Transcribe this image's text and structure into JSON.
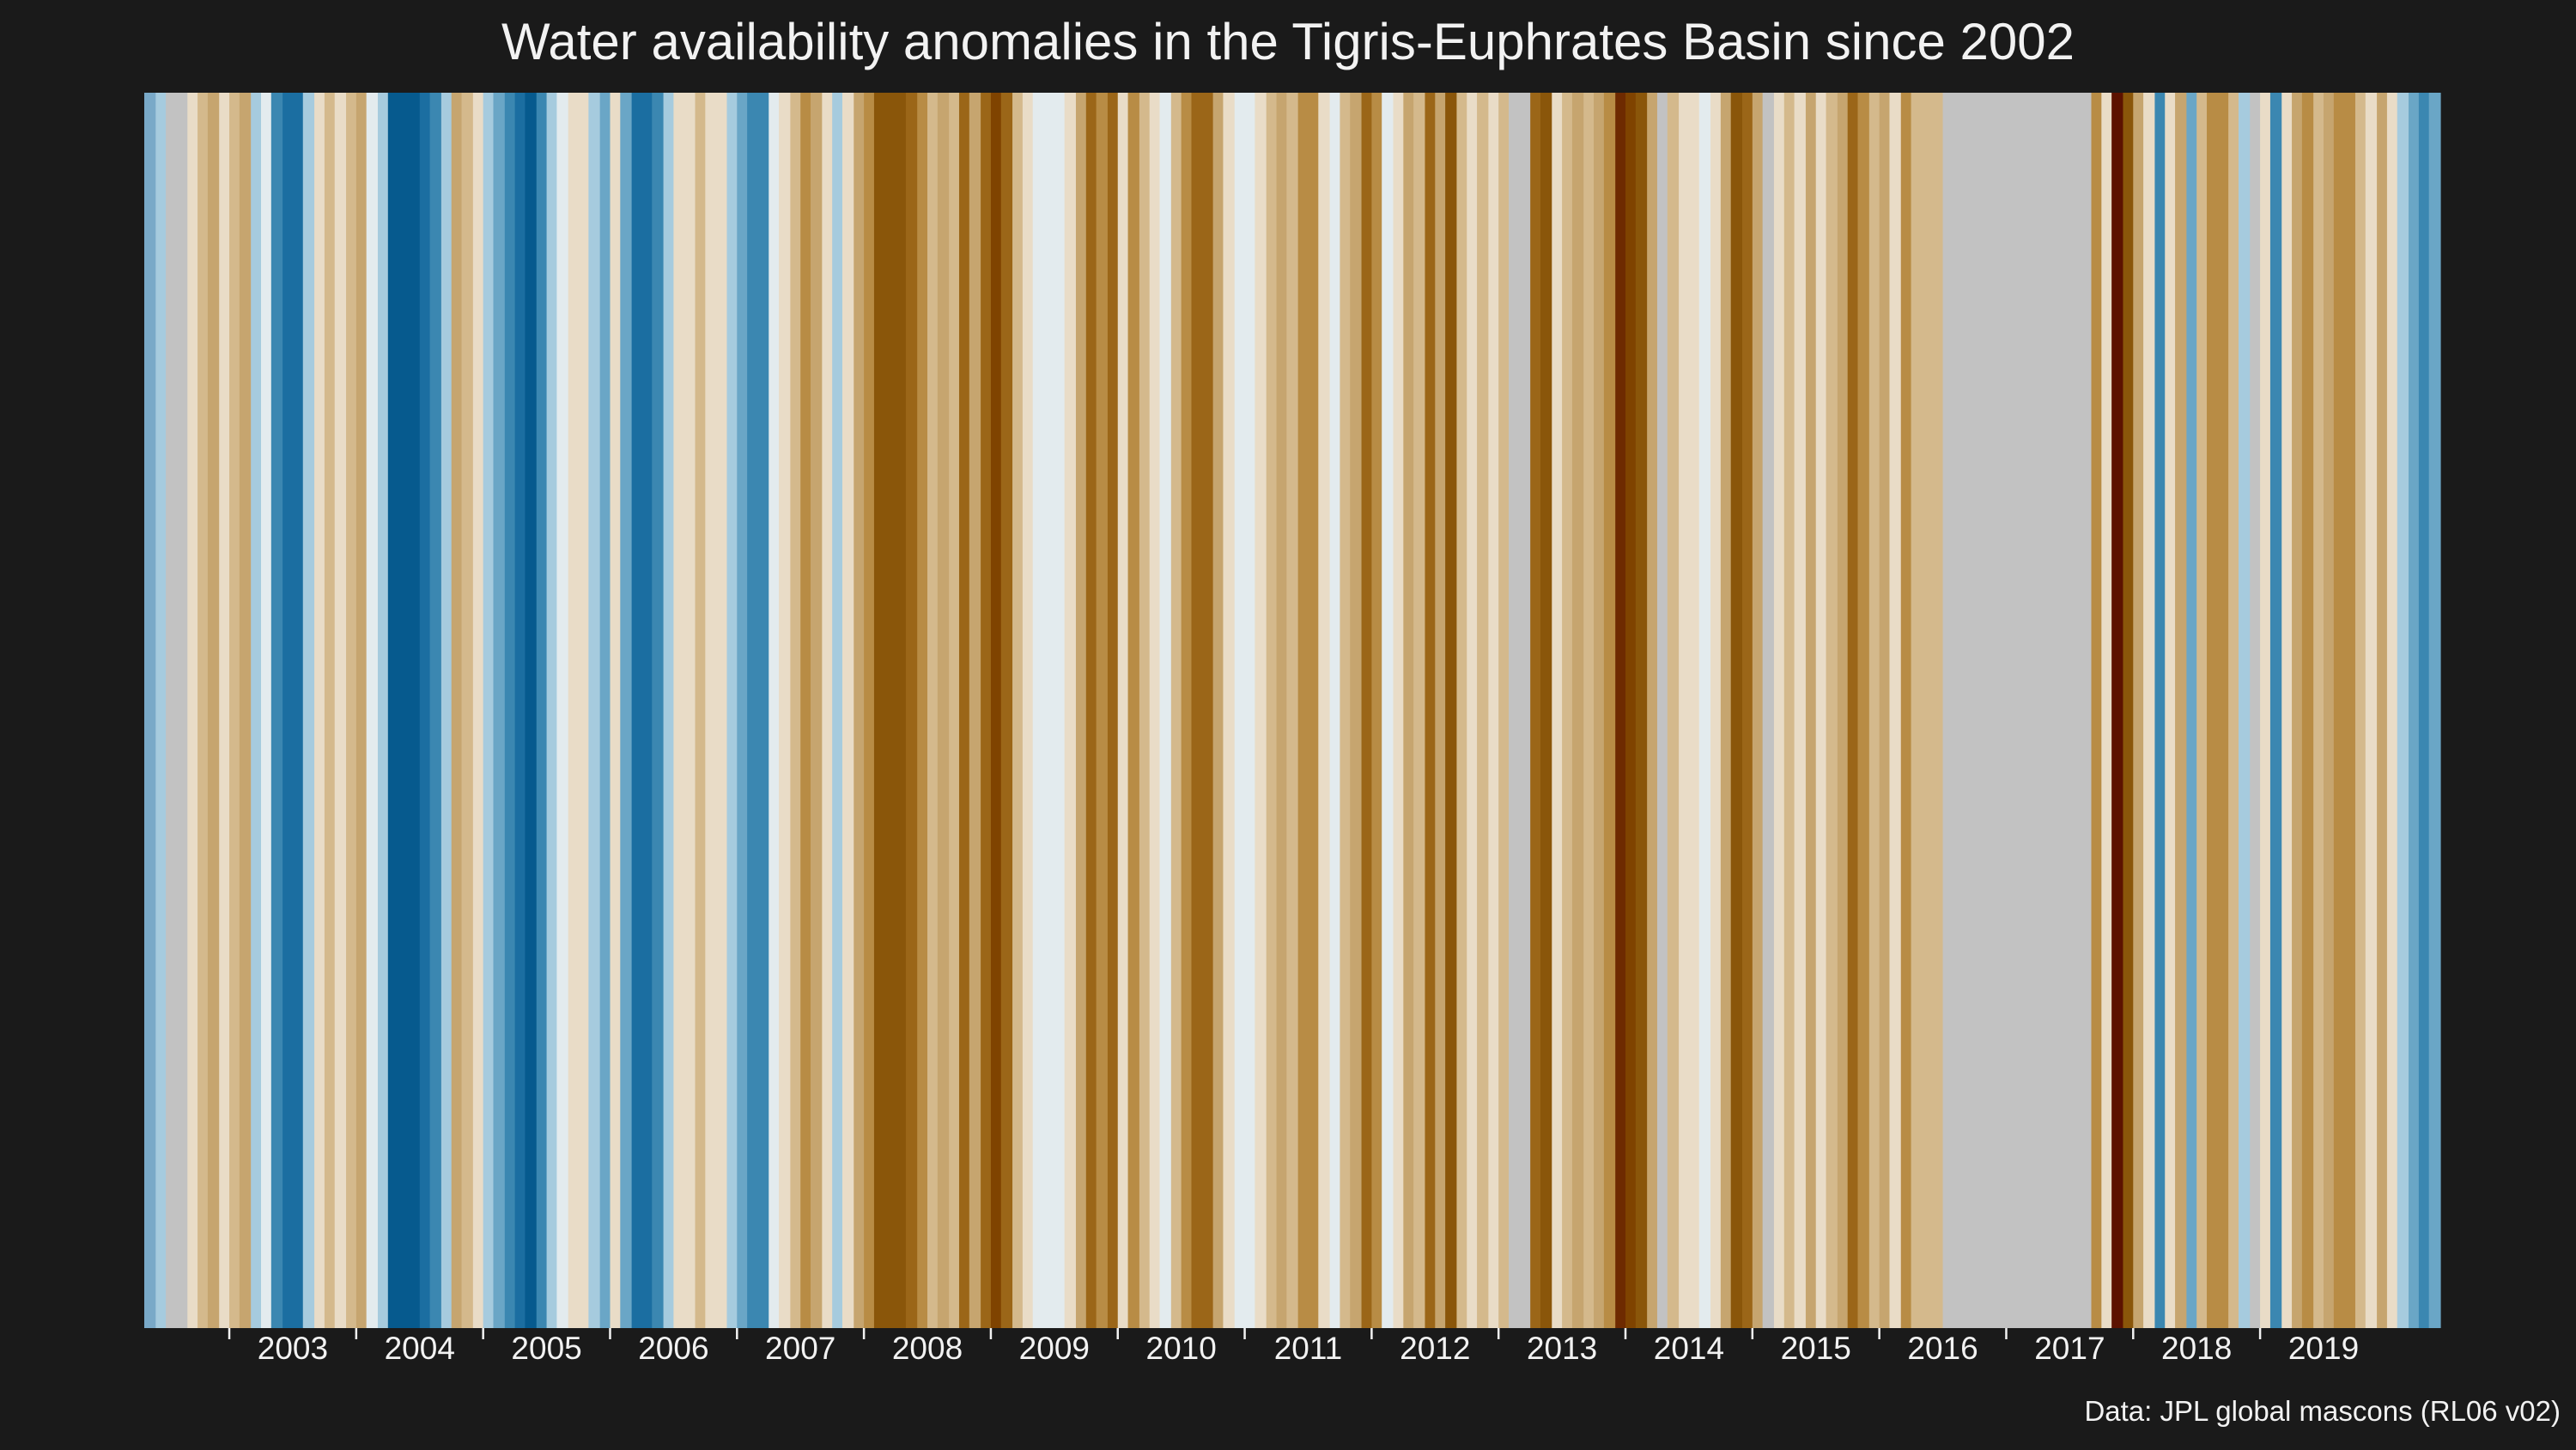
{
  "chart_data": {
    "type": "heatmap",
    "title": "Water availability anomalies in the Tigris-Euphrates Basin since 2002",
    "caption": "Data: JPL global mascons (RL06 v02)",
    "xlabel": "",
    "ylabel": "",
    "x_start": 2002.33,
    "x_end": 2020.42,
    "xlim": [
      2002.33,
      2020.42
    ],
    "ticks": [
      "2003",
      "2004",
      "2005",
      "2006",
      "2007",
      "2008",
      "2009",
      "2010",
      "2011",
      "2012",
      "2013",
      "2014",
      "2015",
      "2016",
      "2017",
      "2018",
      "2019"
    ],
    "palette": {
      "missing": "#c2c2c2",
      "scale": [
        "#065a8e",
        "#1b6ea1",
        "#3b87b1",
        "#6aa6c6",
        "#a6cbde",
        "#e3ebee",
        "#e9dcc7",
        "#d4b98c",
        "#c6a56f",
        "#b88c45",
        "#9b6618",
        "#8a560a",
        "#7f4300",
        "#6e2a00",
        "#5c1200"
      ]
    },
    "stripes": [
      {
        "from": 2002.33,
        "to": 2002.42,
        "color": "#79a9c8"
      },
      {
        "from": 2002.42,
        "to": 2002.5,
        "color": "#a6cbde"
      },
      {
        "from": 2002.5,
        "to": 2002.67,
        "color": "#c2c2c2"
      },
      {
        "from": 2002.67,
        "to": 2002.75,
        "color": "#e9dcc7"
      },
      {
        "from": 2002.75,
        "to": 2002.83,
        "color": "#d4b98c"
      },
      {
        "from": 2002.83,
        "to": 2002.92,
        "color": "#c6a56f"
      },
      {
        "from": 2002.92,
        "to": 2003.0,
        "color": "#e9dcc7"
      },
      {
        "from": 2003.0,
        "to": 2003.08,
        "color": "#d4b98c"
      },
      {
        "from": 2003.08,
        "to": 2003.17,
        "color": "#c6a56f"
      },
      {
        "from": 2003.17,
        "to": 2003.25,
        "color": "#a6cbde"
      },
      {
        "from": 2003.25,
        "to": 2003.33,
        "color": "#e3ebee"
      },
      {
        "from": 2003.33,
        "to": 2003.42,
        "color": "#3b87b1"
      },
      {
        "from": 2003.42,
        "to": 2003.58,
        "color": "#1b6ea1"
      },
      {
        "from": 2003.58,
        "to": 2003.67,
        "color": "#a6cbde"
      },
      {
        "from": 2003.67,
        "to": 2003.75,
        "color": "#e9dcc7"
      },
      {
        "from": 2003.75,
        "to": 2003.83,
        "color": "#d4b98c"
      },
      {
        "from": 2003.83,
        "to": 2003.92,
        "color": "#e9dcc7"
      },
      {
        "from": 2003.92,
        "to": 2004.0,
        "color": "#d4b98c"
      },
      {
        "from": 2004.0,
        "to": 2004.08,
        "color": "#c6a56f"
      },
      {
        "from": 2004.08,
        "to": 2004.17,
        "color": "#e3ebee"
      },
      {
        "from": 2004.17,
        "to": 2004.25,
        "color": "#a6cbde"
      },
      {
        "from": 2004.25,
        "to": 2004.5,
        "color": "#065a8e"
      },
      {
        "from": 2004.5,
        "to": 2004.58,
        "color": "#1b6ea1"
      },
      {
        "from": 2004.58,
        "to": 2004.67,
        "color": "#3b87b1"
      },
      {
        "from": 2004.67,
        "to": 2004.75,
        "color": "#a6cbde"
      },
      {
        "from": 2004.75,
        "to": 2004.83,
        "color": "#c6a56f"
      },
      {
        "from": 2004.83,
        "to": 2004.92,
        "color": "#d4b98c"
      },
      {
        "from": 2004.92,
        "to": 2005.0,
        "color": "#e9dcc7"
      },
      {
        "from": 2005.0,
        "to": 2005.08,
        "color": "#a6cbde"
      },
      {
        "from": 2005.08,
        "to": 2005.17,
        "color": "#6aa6c6"
      },
      {
        "from": 2005.17,
        "to": 2005.25,
        "color": "#3b87b1"
      },
      {
        "from": 2005.25,
        "to": 2005.33,
        "color": "#1b6ea1"
      },
      {
        "from": 2005.33,
        "to": 2005.42,
        "color": "#065a8e"
      },
      {
        "from": 2005.42,
        "to": 2005.5,
        "color": "#3b87b1"
      },
      {
        "from": 2005.5,
        "to": 2005.58,
        "color": "#a6cbde"
      },
      {
        "from": 2005.58,
        "to": 2005.67,
        "color": "#e3ebee"
      },
      {
        "from": 2005.67,
        "to": 2005.83,
        "color": "#e9dcc7"
      },
      {
        "from": 2005.83,
        "to": 2005.92,
        "color": "#a6cbde"
      },
      {
        "from": 2005.92,
        "to": 2006.0,
        "color": "#6aa6c6"
      },
      {
        "from": 2006.0,
        "to": 2006.08,
        "color": "#e9dcc7"
      },
      {
        "from": 2006.08,
        "to": 2006.17,
        "color": "#6aa6c6"
      },
      {
        "from": 2006.17,
        "to": 2006.33,
        "color": "#1b6ea1"
      },
      {
        "from": 2006.33,
        "to": 2006.42,
        "color": "#3b87b1"
      },
      {
        "from": 2006.42,
        "to": 2006.5,
        "color": "#a6cbde"
      },
      {
        "from": 2006.5,
        "to": 2006.67,
        "color": "#e9dcc7"
      },
      {
        "from": 2006.67,
        "to": 2006.75,
        "color": "#d4b98c"
      },
      {
        "from": 2006.75,
        "to": 2006.92,
        "color": "#e9dcc7"
      },
      {
        "from": 2006.92,
        "to": 2007.0,
        "color": "#a6cbde"
      },
      {
        "from": 2007.0,
        "to": 2007.08,
        "color": "#6aa6c6"
      },
      {
        "from": 2007.08,
        "to": 2007.25,
        "color": "#3b87b1"
      },
      {
        "from": 2007.25,
        "to": 2007.33,
        "color": "#e3ebee"
      },
      {
        "from": 2007.33,
        "to": 2007.42,
        "color": "#e9dcc7"
      },
      {
        "from": 2007.42,
        "to": 2007.5,
        "color": "#d4b98c"
      },
      {
        "from": 2007.5,
        "to": 2007.58,
        "color": "#b88c45"
      },
      {
        "from": 2007.58,
        "to": 2007.67,
        "color": "#c6a56f"
      },
      {
        "from": 2007.67,
        "to": 2007.75,
        "color": "#e9dcc7"
      },
      {
        "from": 2007.75,
        "to": 2007.83,
        "color": "#a6cbde"
      },
      {
        "from": 2007.83,
        "to": 2007.92,
        "color": "#e9dcc7"
      },
      {
        "from": 2007.92,
        "to": 2008.0,
        "color": "#c6a56f"
      },
      {
        "from": 2008.0,
        "to": 2008.08,
        "color": "#b88c45"
      },
      {
        "from": 2008.08,
        "to": 2008.33,
        "color": "#8a560a"
      },
      {
        "from": 2008.33,
        "to": 2008.42,
        "color": "#9b6618"
      },
      {
        "from": 2008.42,
        "to": 2008.5,
        "color": "#b88c45"
      },
      {
        "from": 2008.5,
        "to": 2008.58,
        "color": "#d4b98c"
      },
      {
        "from": 2008.58,
        "to": 2008.67,
        "color": "#c6a56f"
      },
      {
        "from": 2008.67,
        "to": 2008.75,
        "color": "#d4b98c"
      },
      {
        "from": 2008.75,
        "to": 2008.83,
        "color": "#9b6618"
      },
      {
        "from": 2008.83,
        "to": 2008.92,
        "color": "#c6a56f"
      },
      {
        "from": 2008.92,
        "to": 2009.0,
        "color": "#9b6618"
      },
      {
        "from": 2009.0,
        "to": 2009.08,
        "color": "#7f4300"
      },
      {
        "from": 2009.08,
        "to": 2009.17,
        "color": "#9b6618"
      },
      {
        "from": 2009.17,
        "to": 2009.25,
        "color": "#d4b98c"
      },
      {
        "from": 2009.25,
        "to": 2009.33,
        "color": "#e9dcc7"
      },
      {
        "from": 2009.33,
        "to": 2009.58,
        "color": "#e3ebee"
      },
      {
        "from": 2009.58,
        "to": 2009.67,
        "color": "#e9dcc7"
      },
      {
        "from": 2009.67,
        "to": 2009.75,
        "color": "#c6a56f"
      },
      {
        "from": 2009.75,
        "to": 2009.83,
        "color": "#9b6618"
      },
      {
        "from": 2009.83,
        "to": 2009.92,
        "color": "#b88c45"
      },
      {
        "from": 2009.92,
        "to": 2010.0,
        "color": "#9b6618"
      },
      {
        "from": 2010.0,
        "to": 2010.08,
        "color": "#e9dcc7"
      },
      {
        "from": 2010.08,
        "to": 2010.17,
        "color": "#b88c45"
      },
      {
        "from": 2010.17,
        "to": 2010.25,
        "color": "#d4b98c"
      },
      {
        "from": 2010.25,
        "to": 2010.33,
        "color": "#e9dcc7"
      },
      {
        "from": 2010.33,
        "to": 2010.42,
        "color": "#e3ebee"
      },
      {
        "from": 2010.42,
        "to": 2010.5,
        "color": "#d4b98c"
      },
      {
        "from": 2010.5,
        "to": 2010.58,
        "color": "#b88c45"
      },
      {
        "from": 2010.58,
        "to": 2010.75,
        "color": "#9b6618"
      },
      {
        "from": 2010.75,
        "to": 2010.83,
        "color": "#c6a56f"
      },
      {
        "from": 2010.83,
        "to": 2010.92,
        "color": "#e9dcc7"
      },
      {
        "from": 2010.92,
        "to": 2011.08,
        "color": "#e3ebee"
      },
      {
        "from": 2011.08,
        "to": 2011.17,
        "color": "#e9dcc7"
      },
      {
        "from": 2011.17,
        "to": 2011.25,
        "color": "#d4b98c"
      },
      {
        "from": 2011.25,
        "to": 2011.33,
        "color": "#c6a56f"
      },
      {
        "from": 2011.33,
        "to": 2011.42,
        "color": "#d4b98c"
      },
      {
        "from": 2011.42,
        "to": 2011.58,
        "color": "#b88c45"
      },
      {
        "from": 2011.58,
        "to": 2011.67,
        "color": "#e9dcc7"
      },
      {
        "from": 2011.67,
        "to": 2011.75,
        "color": "#e3ebee"
      },
      {
        "from": 2011.75,
        "to": 2011.83,
        "color": "#d4b98c"
      },
      {
        "from": 2011.83,
        "to": 2011.92,
        "color": "#c6a56f"
      },
      {
        "from": 2011.92,
        "to": 2012.0,
        "color": "#9b6618"
      },
      {
        "from": 2012.0,
        "to": 2012.08,
        "color": "#b88c45"
      },
      {
        "from": 2012.08,
        "to": 2012.17,
        "color": "#e3ebee"
      },
      {
        "from": 2012.17,
        "to": 2012.25,
        "color": "#e9dcc7"
      },
      {
        "from": 2012.25,
        "to": 2012.33,
        "color": "#c6a56f"
      },
      {
        "from": 2012.33,
        "to": 2012.42,
        "color": "#d4b98c"
      },
      {
        "from": 2012.42,
        "to": 2012.5,
        "color": "#9b6618"
      },
      {
        "from": 2012.5,
        "to": 2012.58,
        "color": "#c6a56f"
      },
      {
        "from": 2012.58,
        "to": 2012.67,
        "color": "#8a560a"
      },
      {
        "from": 2012.67,
        "to": 2012.75,
        "color": "#d4b98c"
      },
      {
        "from": 2012.75,
        "to": 2012.83,
        "color": "#e9dcc7"
      },
      {
        "from": 2012.83,
        "to": 2012.92,
        "color": "#d4b98c"
      },
      {
        "from": 2012.92,
        "to": 2013.0,
        "color": "#e9dcc7"
      },
      {
        "from": 2013.0,
        "to": 2013.08,
        "color": "#d4b98c"
      },
      {
        "from": 2013.08,
        "to": 2013.25,
        "color": "#c2c2c2"
      },
      {
        "from": 2013.25,
        "to": 2013.33,
        "color": "#9b6618"
      },
      {
        "from": 2013.33,
        "to": 2013.42,
        "color": "#8a560a"
      },
      {
        "from": 2013.42,
        "to": 2013.5,
        "color": "#e9dcc7"
      },
      {
        "from": 2013.5,
        "to": 2013.58,
        "color": "#d4b98c"
      },
      {
        "from": 2013.58,
        "to": 2013.67,
        "color": "#c6a56f"
      },
      {
        "from": 2013.67,
        "to": 2013.75,
        "color": "#d4b98c"
      },
      {
        "from": 2013.75,
        "to": 2013.83,
        "color": "#c6a56f"
      },
      {
        "from": 2013.83,
        "to": 2013.92,
        "color": "#b88c45"
      },
      {
        "from": 2013.92,
        "to": 2014.0,
        "color": "#6e2a00"
      },
      {
        "from": 2014.0,
        "to": 2014.08,
        "color": "#7f4300"
      },
      {
        "from": 2014.08,
        "to": 2014.17,
        "color": "#8a560a"
      },
      {
        "from": 2014.17,
        "to": 2014.25,
        "color": "#c6a56f"
      },
      {
        "from": 2014.25,
        "to": 2014.33,
        "color": "#c2c2c2"
      },
      {
        "from": 2014.33,
        "to": 2014.42,
        "color": "#d4b98c"
      },
      {
        "from": 2014.42,
        "to": 2014.58,
        "color": "#e9dcc7"
      },
      {
        "from": 2014.58,
        "to": 2014.67,
        "color": "#e3ebee"
      },
      {
        "from": 2014.67,
        "to": 2014.75,
        "color": "#e9dcc7"
      },
      {
        "from": 2014.75,
        "to": 2014.83,
        "color": "#c6a56f"
      },
      {
        "from": 2014.83,
        "to": 2014.92,
        "color": "#8a560a"
      },
      {
        "from": 2014.92,
        "to": 2015.0,
        "color": "#9b6618"
      },
      {
        "from": 2015.0,
        "to": 2015.08,
        "color": "#c6a56f"
      },
      {
        "from": 2015.08,
        "to": 2015.17,
        "color": "#c2c2c2"
      },
      {
        "from": 2015.17,
        "to": 2015.25,
        "color": "#e9dcc7"
      },
      {
        "from": 2015.25,
        "to": 2015.33,
        "color": "#d4b98c"
      },
      {
        "from": 2015.33,
        "to": 2015.42,
        "color": "#e9dcc7"
      },
      {
        "from": 2015.42,
        "to": 2015.5,
        "color": "#c6a56f"
      },
      {
        "from": 2015.5,
        "to": 2015.58,
        "color": "#e9dcc7"
      },
      {
        "from": 2015.58,
        "to": 2015.67,
        "color": "#d4b98c"
      },
      {
        "from": 2015.67,
        "to": 2015.75,
        "color": "#c6a56f"
      },
      {
        "from": 2015.75,
        "to": 2015.83,
        "color": "#9b6618"
      },
      {
        "from": 2015.83,
        "to": 2015.92,
        "color": "#b88c45"
      },
      {
        "from": 2015.92,
        "to": 2016.0,
        "color": "#d4b98c"
      },
      {
        "from": 2016.0,
        "to": 2016.08,
        "color": "#c6a56f"
      },
      {
        "from": 2016.08,
        "to": 2016.17,
        "color": "#e9dcc7"
      },
      {
        "from": 2016.17,
        "to": 2016.25,
        "color": "#b88c45"
      },
      {
        "from": 2016.25,
        "to": 2016.5,
        "color": "#d4b98c"
      },
      {
        "from": 2016.5,
        "to": 2017.67,
        "color": "#c2c2c2"
      },
      {
        "from": 2017.67,
        "to": 2017.75,
        "color": "#b88c45"
      },
      {
        "from": 2017.75,
        "to": 2017.83,
        "color": "#e9dcc7"
      },
      {
        "from": 2017.83,
        "to": 2017.92,
        "color": "#5c1200"
      },
      {
        "from": 2017.92,
        "to": 2018.0,
        "color": "#8a560a"
      },
      {
        "from": 2018.0,
        "to": 2018.08,
        "color": "#c6a56f"
      },
      {
        "from": 2018.08,
        "to": 2018.17,
        "color": "#e9dcc7"
      },
      {
        "from": 2018.17,
        "to": 2018.25,
        "color": "#3b87b1"
      },
      {
        "from": 2018.25,
        "to": 2018.33,
        "color": "#e9dcc7"
      },
      {
        "from": 2018.33,
        "to": 2018.42,
        "color": "#c6a56f"
      },
      {
        "from": 2018.42,
        "to": 2018.5,
        "color": "#6aa6c6"
      },
      {
        "from": 2018.5,
        "to": 2018.58,
        "color": "#d4b98c"
      },
      {
        "from": 2018.58,
        "to": 2018.75,
        "color": "#b88c45"
      },
      {
        "from": 2018.75,
        "to": 2018.83,
        "color": "#d4b98c"
      },
      {
        "from": 2018.83,
        "to": 2018.92,
        "color": "#a6cbde"
      },
      {
        "from": 2018.92,
        "to": 2019.0,
        "color": "#c2c2c2"
      },
      {
        "from": 2019.0,
        "to": 2019.08,
        "color": "#e9dcc7"
      },
      {
        "from": 2019.08,
        "to": 2019.17,
        "color": "#3b87b1"
      },
      {
        "from": 2019.17,
        "to": 2019.25,
        "color": "#e9dcc7"
      },
      {
        "from": 2019.25,
        "to": 2019.33,
        "color": "#c6a56f"
      },
      {
        "from": 2019.33,
        "to": 2019.42,
        "color": "#b88c45"
      },
      {
        "from": 2019.42,
        "to": 2019.5,
        "color": "#d4b98c"
      },
      {
        "from": 2019.5,
        "to": 2019.58,
        "color": "#c6a56f"
      },
      {
        "from": 2019.58,
        "to": 2019.75,
        "color": "#b88c45"
      },
      {
        "from": 2019.75,
        "to": 2019.83,
        "color": "#d4b98c"
      },
      {
        "from": 2019.83,
        "to": 2019.92,
        "color": "#e9dcc7"
      },
      {
        "from": 2019.92,
        "to": 2020.0,
        "color": "#c6a56f"
      },
      {
        "from": 2020.0,
        "to": 2020.08,
        "color": "#e9dcc7"
      },
      {
        "from": 2020.08,
        "to": 2020.17,
        "color": "#a6cbde"
      },
      {
        "from": 2020.17,
        "to": 2020.25,
        "color": "#6aa6c6"
      },
      {
        "from": 2020.25,
        "to": 2020.33,
        "color": "#3b87b1"
      },
      {
        "from": 2020.33,
        "to": 2020.42,
        "color": "#6aa6c6"
      }
    ]
  }
}
